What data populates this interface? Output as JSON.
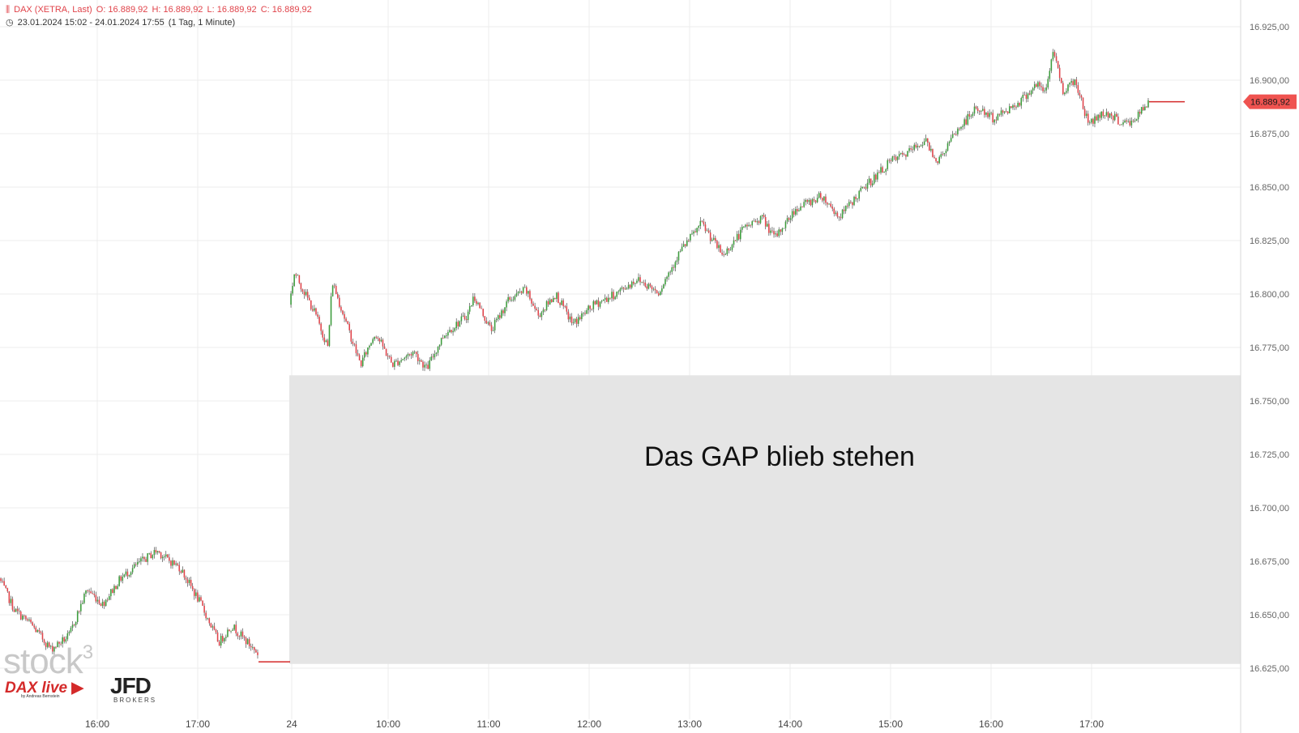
{
  "header": {
    "instrument": "DAX (XETRA, Last)",
    "open": "O: 16.889,92",
    "high": "H: 16.889,92",
    "low": "L: 16.889,92",
    "close": "C: 16.889,92",
    "range": "23.01.2024 15:02 - 24.01.2024 17:55",
    "interval": "(1 Tag, 1 Minute)"
  },
  "watermark": {
    "text": "stock",
    "superscript": "3"
  },
  "logos": {
    "dax_live": "DAX live",
    "dax_live_sub": "by Andreas Bernstein",
    "jfd": "JFD",
    "jfd_sub": "BROKERS"
  },
  "colors": {
    "up": "#3c9c3c",
    "down": "#e0434a",
    "gap_zone": "#e5e5e5",
    "price_tag": "#ef5350",
    "grid": "#ececec"
  },
  "chart_data": {
    "type": "candlestick",
    "y_axis": {
      "range": [
        16610,
        16935
      ],
      "ticks": [
        16625,
        16650,
        16675,
        16700,
        16725,
        16750,
        16775,
        16800,
        16825,
        16850,
        16875,
        16900,
        16925
      ],
      "tick_labels": [
        "16.625,00",
        "16.650,00",
        "16.675,00",
        "16.700,00",
        "16.725,00",
        "16.750,00",
        "16.775,00",
        "16.800,00",
        "16.825,00",
        "16.850,00",
        "16.875,00",
        "16.900,00",
        "16.925,00"
      ]
    },
    "x_axis": {
      "tick_labels": [
        "16:00",
        "17:00",
        "24",
        "10:00",
        "11:00",
        "12:00",
        "13:00",
        "14:00",
        "15:00",
        "16:00",
        "17:00"
      ]
    },
    "last_price": {
      "value": 16889.92,
      "label": "16.889,92"
    },
    "annotation": {
      "text": "Das GAP blieb stehen",
      "gap_low": 16627,
      "gap_high": 16762
    },
    "series": [
      {
        "name": "DAX",
        "session": "23.01.2024",
        "start": "15:02",
        "end": "17:35",
        "close": 16628,
        "path": [
          [
            16667,
            0
          ],
          [
            16652,
            0.06
          ],
          [
            16646,
            0.12
          ],
          [
            16634,
            0.2
          ],
          [
            16640,
            0.27
          ],
          [
            16662,
            0.34
          ],
          [
            16655,
            0.4
          ],
          [
            16667,
            0.47
          ],
          [
            16674,
            0.54
          ],
          [
            16680,
            0.61
          ],
          [
            16676,
            0.65
          ],
          [
            16672,
            0.7
          ],
          [
            16655,
            0.78
          ],
          [
            16637,
            0.85
          ],
          [
            16645,
            0.9
          ],
          [
            16637,
            0.96
          ],
          [
            16632,
            1
          ]
        ]
      },
      {
        "name": "DAX",
        "session": "24.01.2024",
        "start": "09:00",
        "end": "17:35",
        "close": 16889.92,
        "path": [
          [
            16795,
            0
          ],
          [
            16810,
            0.006
          ],
          [
            16791,
            0.03
          ],
          [
            16775,
            0.045
          ],
          [
            16806,
            0.05
          ],
          [
            16782,
            0.07
          ],
          [
            16767,
            0.083
          ],
          [
            16782,
            0.1
          ],
          [
            16767,
            0.12
          ],
          [
            16773,
            0.145
          ],
          [
            16765,
            0.16
          ],
          [
            16781,
            0.18
          ],
          [
            16790,
            0.207
          ],
          [
            16799,
            0.215
          ],
          [
            16783,
            0.235
          ],
          [
            16797,
            0.255
          ],
          [
            16802,
            0.275
          ],
          [
            16790,
            0.29
          ],
          [
            16800,
            0.31
          ],
          [
            16786,
            0.33
          ],
          [
            16795,
            0.355
          ],
          [
            16800,
            0.38
          ],
          [
            16807,
            0.405
          ],
          [
            16801,
            0.43
          ],
          [
            16820,
            0.455
          ],
          [
            16833,
            0.48
          ],
          [
            16818,
            0.505
          ],
          [
            16831,
            0.53
          ],
          [
            16836,
            0.55
          ],
          [
            16826,
            0.565
          ],
          [
            16840,
            0.59
          ],
          [
            16846,
            0.62
          ],
          [
            16836,
            0.64
          ],
          [
            16850,
            0.67
          ],
          [
            16862,
            0.7
          ],
          [
            16866,
            0.72
          ],
          [
            16872,
            0.74
          ],
          [
            16862,
            0.755
          ],
          [
            16875,
            0.775
          ],
          [
            16887,
            0.8
          ],
          [
            16882,
            0.82
          ],
          [
            16890,
            0.85
          ],
          [
            16898,
            0.87
          ],
          [
            16894,
            0.88
          ],
          [
            16915,
            0.89
          ],
          [
            16895,
            0.9
          ],
          [
            16900,
            0.915
          ],
          [
            16880,
            0.93
          ],
          [
            16885,
            0.95
          ],
          [
            16880,
            0.97
          ],
          [
            16880,
            0.98
          ],
          [
            16889,
            1
          ]
        ]
      }
    ]
  }
}
